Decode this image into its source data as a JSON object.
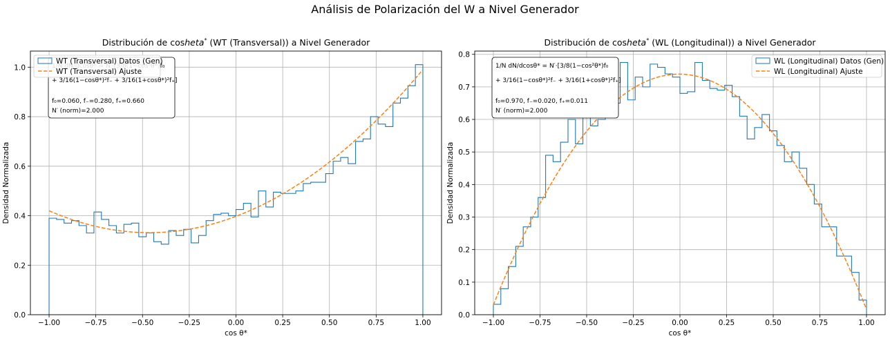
{
  "figure": {
    "title": "Análisis de Polarización del W a Nivel Generador"
  },
  "chart_data": [
    {
      "type": "histogram",
      "title": "Distribución de cos\\theta* (WT (Transversal)) a Nivel Generador",
      "title_parts": [
        "Distribución de cos",
        "heta",
        "*",
        " (WT (Transversal)) a Nivel Generador"
      ],
      "xlabel": "cos θ*",
      "ylabel": "Densidad Normalizada",
      "xlim": [
        -1.1,
        1.1
      ],
      "ylim": [
        0,
        1.065
      ],
      "xticks": [
        -1.0,
        -0.75,
        -0.5,
        -0.25,
        0.0,
        0.25,
        0.5,
        0.75,
        1.0
      ],
      "xtick_labels": [
        "−1.00",
        "−0.75",
        "−0.50",
        "−0.25",
        "0.00",
        "0.25",
        "0.50",
        "0.75",
        "1.00"
      ],
      "yticks": [
        0,
        0.2,
        0.4,
        0.6,
        0.8,
        1.0
      ],
      "ytick_labels": [
        "0.0",
        "0.2",
        "0.4",
        "0.6",
        "0.8",
        "1.0"
      ],
      "grid": true,
      "legend_position": "top-left",
      "bin_edges_range": [
        -1.0,
        1.0
      ],
      "n_bins": 50,
      "series": [
        {
          "name": "WT (Transversal) Datos (Gen)",
          "kind": "step-histogram",
          "color": "#1f77b4",
          "values": [
            0.39,
            0.385,
            0.37,
            0.38,
            0.36,
            0.33,
            0.415,
            0.385,
            0.36,
            0.33,
            0.365,
            0.37,
            0.315,
            0.33,
            0.295,
            0.285,
            0.34,
            0.32,
            0.345,
            0.29,
            0.32,
            0.38,
            0.405,
            0.41,
            0.4,
            0.425,
            0.45,
            0.395,
            0.5,
            0.435,
            0.495,
            0.49,
            0.49,
            0.5,
            0.53,
            0.535,
            0.535,
            0.57,
            0.62,
            0.635,
            0.61,
            0.7,
            0.71,
            0.8,
            0.77,
            0.76,
            0.855,
            0.875,
            0.925,
            1.01
          ]
        },
        {
          "name": "WT (Transversal) Ajuste",
          "kind": "fit-curve",
          "color": "#ff7f0e",
          "params": {
            "f0": 0.06,
            "fminus": 0.28,
            "fplus": 0.66,
            "norm": 2.0
          }
        }
      ],
      "annotation": {
        "line1": "1/N dN/dcosθ* = N′·[3/8(1−cos²θ*)f₀",
        "line2": "+ 3/16(1−cosθ*)²f₋ + 3/16(1+cosθ*)²f₊]",
        "line3": "f₀=0.060, f₋=0.280, f₊=0.660",
        "line4": "N′ (norm)=2.000"
      }
    },
    {
      "type": "histogram",
      "title": "Distribución de cos\\theta* (WL (Longitudinal)) a Nivel Generador",
      "title_parts": [
        "Distribución de cos",
        "heta",
        "*",
        " (WL (Longitudinal)) a Nivel Generador"
      ],
      "xlabel": "cos θ*",
      "ylabel": "Densidad Normalizada",
      "xlim": [
        -1.1,
        1.1
      ],
      "ylim": [
        0,
        0.81
      ],
      "xticks": [
        -1.0,
        -0.75,
        -0.5,
        -0.25,
        0.0,
        0.25,
        0.5,
        0.75,
        1.0
      ],
      "xtick_labels": [
        "−1.00",
        "−0.75",
        "−0.50",
        "−0.25",
        "0.00",
        "0.25",
        "0.50",
        "0.75",
        "1.00"
      ],
      "yticks": [
        0,
        0.1,
        0.2,
        0.3,
        0.4,
        0.5,
        0.6,
        0.7,
        0.8
      ],
      "ytick_labels": [
        "0.0",
        "0.1",
        "0.2",
        "0.3",
        "0.4",
        "0.5",
        "0.6",
        "0.7",
        "0.8"
      ],
      "grid": true,
      "legend_position": "top-right",
      "bin_edges_range": [
        -1.0,
        1.0
      ],
      "n_bins": 50,
      "series": [
        {
          "name": "WL (Longitudinal) Datos (Gen)",
          "kind": "step-histogram",
          "color": "#1f77b4",
          "values": [
            0.032,
            0.08,
            0.148,
            0.21,
            0.27,
            0.3,
            0.36,
            0.49,
            0.47,
            0.53,
            0.6,
            0.525,
            0.61,
            0.58,
            0.6,
            0.665,
            0.65,
            0.775,
            0.66,
            0.73,
            0.7,
            0.77,
            0.76,
            0.74,
            0.73,
            0.68,
            0.685,
            0.775,
            0.72,
            0.695,
            0.69,
            0.705,
            0.67,
            0.61,
            0.54,
            0.575,
            0.615,
            0.565,
            0.52,
            0.47,
            0.5,
            0.45,
            0.4,
            0.34,
            0.27,
            0.27,
            0.18,
            0.18,
            0.13,
            0.045
          ]
        },
        {
          "name": "WL (Longitudinal) Ajuste",
          "kind": "fit-curve",
          "color": "#ff7f0e",
          "params": {
            "f0": 0.97,
            "fminus": 0.02,
            "fplus": 0.011,
            "norm": 2.0
          }
        }
      ],
      "annotation": {
        "line1": "1/N dN/dcosθ* = N′·[3/8(1−cos²θ*)f₀",
        "line2": "+ 3/16(1−cosθ*)²f₋ + 3/16(1+cosθ*)²f₊]",
        "line3": "f₀=0.970, f₋=0.020, f₊=0.011",
        "line4": "N′ (norm)=2.000"
      }
    }
  ]
}
